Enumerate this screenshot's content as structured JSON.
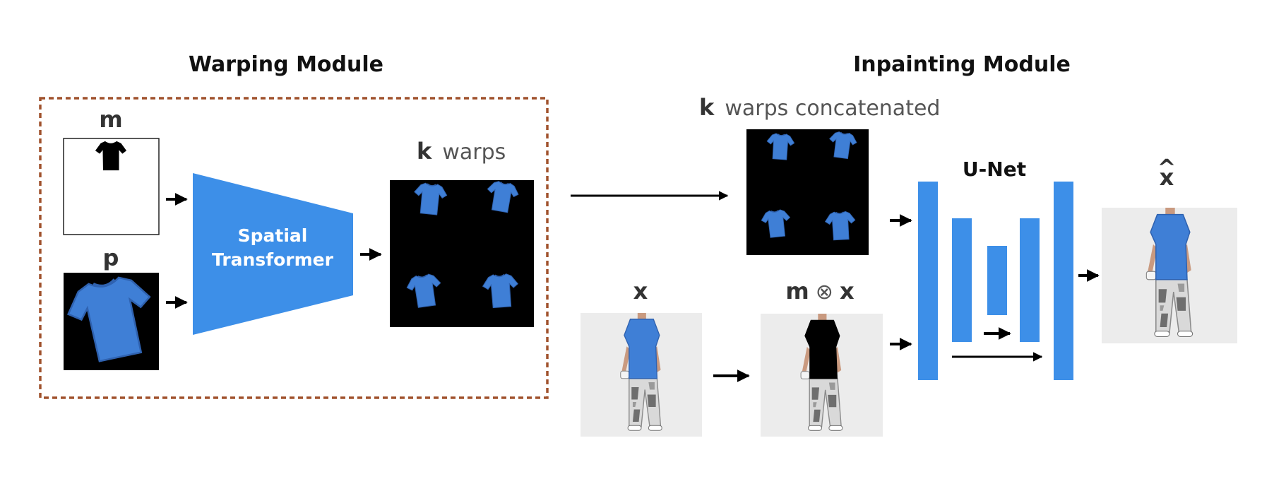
{
  "colors": {
    "blue": "#3d8fe8",
    "shirt": "#3f7fd6",
    "shirt_dark": "#2f62b0",
    "dashed_border": "#a0522d",
    "arrow": "#000000",
    "skin": "#c99a80"
  },
  "warping_module": {
    "title": "Warping Module",
    "m_label": "m",
    "p_label": "p",
    "spatial_transformer": {
      "line1": "Spatial",
      "line2": "Transformer"
    },
    "k_warps": {
      "k": "k",
      "text": "warps"
    }
  },
  "inpainting_module": {
    "title": "Inpainting Module",
    "k_concat": {
      "k": "k",
      "text": "warps concatenated"
    },
    "x_label": "x",
    "masked_label": {
      "m": "m",
      "op": "⊗",
      "x": "x"
    },
    "unet_title": "U-Net",
    "output_label": {
      "hat": "^",
      "x": "x"
    }
  }
}
